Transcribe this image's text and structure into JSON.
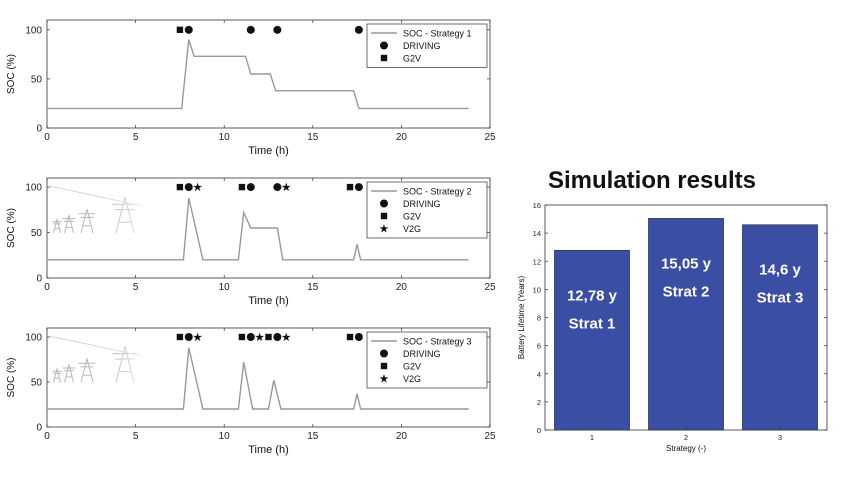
{
  "page_title": "Simulation results",
  "chart_data": [
    {
      "type": "line",
      "xlabel": "Time (h)",
      "ylabel": "SOC (%)",
      "xlim": [
        0,
        25
      ],
      "ylim": [
        0,
        110
      ],
      "xticks": [
        "0",
        "5",
        "10",
        "15",
        "20",
        "25"
      ],
      "yticks": [
        "0",
        "50",
        "100"
      ],
      "grid": false,
      "legend_position": "top-right",
      "series": [
        {
          "name": "SOC - Strategy 1",
          "x": [
            0,
            7.6,
            8.0,
            8.3,
            11.2,
            11.5,
            12.6,
            12.9,
            17.3,
            17.6,
            23.8
          ],
          "y": [
            20,
            20,
            90,
            73,
            73,
            55,
            55,
            38,
            38,
            20,
            20
          ]
        }
      ],
      "markers": [
        {
          "name": "DRIVING",
          "symbol": "circle",
          "x": [
            8.0,
            11.5,
            13.0,
            17.6
          ],
          "y": 100
        },
        {
          "name": "G2V",
          "symbol": "square",
          "x": [
            7.5
          ],
          "y": 100
        }
      ]
    },
    {
      "type": "line",
      "xlabel": "Time (h)",
      "ylabel": "SOC (%)",
      "xlim": [
        0,
        25
      ],
      "ylim": [
        0,
        110
      ],
      "xticks": [
        "0",
        "5",
        "10",
        "15",
        "20",
        "25"
      ],
      "yticks": [
        "0",
        "50",
        "100"
      ],
      "grid": false,
      "legend_position": "top-right",
      "series": [
        {
          "name": "SOC - Strategy 2",
          "x": [
            0,
            7.7,
            8.0,
            8.8,
            10.8,
            11.1,
            11.5,
            13.0,
            13.3,
            17.3,
            17.5,
            17.7,
            23.8
          ],
          "y": [
            20,
            20,
            88,
            20,
            20,
            72,
            55,
            55,
            20,
            20,
            37,
            20,
            20
          ]
        }
      ],
      "markers": [
        {
          "name": "DRIVING",
          "symbol": "circle",
          "x": [
            8.0,
            11.5,
            13.0,
            17.6
          ],
          "y": 100
        },
        {
          "name": "G2V",
          "symbol": "square",
          "x": [
            7.5,
            11.0,
            17.1
          ],
          "y": 100
        },
        {
          "name": "V2G",
          "symbol": "star",
          "x": [
            8.5,
            13.5
          ],
          "y": 100
        }
      ]
    },
    {
      "type": "line",
      "xlabel": "Time (h)",
      "ylabel": "SOC (%)",
      "xlim": [
        0,
        25
      ],
      "ylim": [
        0,
        110
      ],
      "xticks": [
        "0",
        "5",
        "10",
        "15",
        "20",
        "25"
      ],
      "yticks": [
        "0",
        "50",
        "100"
      ],
      "grid": false,
      "legend_position": "top-right",
      "series": [
        {
          "name": "SOC - Strategy 3",
          "x": [
            0,
            7.7,
            8.0,
            8.8,
            10.8,
            11.1,
            11.6,
            12.5,
            12.8,
            13.2,
            17.3,
            17.5,
            17.7,
            23.8
          ],
          "y": [
            20,
            20,
            88,
            20,
            20,
            72,
            20,
            20,
            52,
            20,
            20,
            37,
            20,
            20
          ]
        }
      ],
      "markers": [
        {
          "name": "DRIVING",
          "symbol": "circle",
          "x": [
            8.0,
            11.5,
            13.0,
            17.6
          ],
          "y": 100
        },
        {
          "name": "G2V",
          "symbol": "square",
          "x": [
            7.5,
            11.0,
            12.5,
            17.1
          ],
          "y": 100
        },
        {
          "name": "V2G",
          "symbol": "star",
          "x": [
            8.5,
            12.0,
            13.5
          ],
          "y": 100
        }
      ]
    },
    {
      "type": "bar",
      "title": "",
      "xlabel": "Strategy (-)",
      "ylabel": "Battery Lifetime (Years)",
      "categories": [
        "1",
        "2",
        "3"
      ],
      "values": [
        12.78,
        15.05,
        14.6
      ],
      "ylim": [
        0,
        16
      ],
      "yticks": [
        "0",
        "2",
        "4",
        "6",
        "8",
        "10",
        "12",
        "14",
        "16"
      ],
      "bar_labels": [
        {
          "value": "12,78 y",
          "name": "Strat 1"
        },
        {
          "value": "15,05 y",
          "name": "Strat 2"
        },
        {
          "value": "14,6 y",
          "name": "Strat 3"
        }
      ],
      "bar_color": "#3a4fa3",
      "label_color": "#ffffff"
    }
  ],
  "colors": {
    "line": "#999999",
    "axis": "#333333",
    "marker": "#111111"
  }
}
